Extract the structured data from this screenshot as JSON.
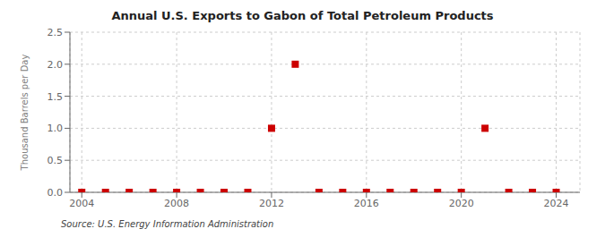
{
  "chart_data": {
    "type": "scatter",
    "title": "Annual U.S. Exports to Gabon of Total Petroleum Products",
    "ylabel": "Thousand Barrels per Day",
    "annotation": "Source: U.S. Energy Information Administration",
    "x": [
      2004,
      2005,
      2006,
      2007,
      2008,
      2009,
      2010,
      2011,
      2012,
      2013,
      2014,
      2015,
      2016,
      2017,
      2018,
      2019,
      2020,
      2021,
      2022,
      2023,
      2024
    ],
    "values": [
      0.0,
      0.0,
      0.0,
      0.0,
      0.0,
      0.0,
      0.0,
      0.0,
      1.0,
      2.0,
      0.0,
      0.0,
      0.0,
      0.0,
      0.0,
      0.0,
      0.0,
      1.0,
      0.0,
      0.0,
      0.0
    ],
    "color": "#cc0000",
    "marker": "square",
    "line_style": "none",
    "xlim": [
      2003.5,
      2025
    ],
    "xticks": [
      2004,
      2008,
      2012,
      2016,
      2020,
      2024
    ],
    "ylim": [
      0.0,
      2.5
    ],
    "yticks": [
      {
        "value": 0.0,
        "label": "0.0"
      },
      0.5,
      {
        "value": 1.0,
        "label": "1.0"
      },
      1.5,
      {
        "value": 2.0,
        "label": "2.0"
      },
      2.5
    ],
    "grid": true
  }
}
